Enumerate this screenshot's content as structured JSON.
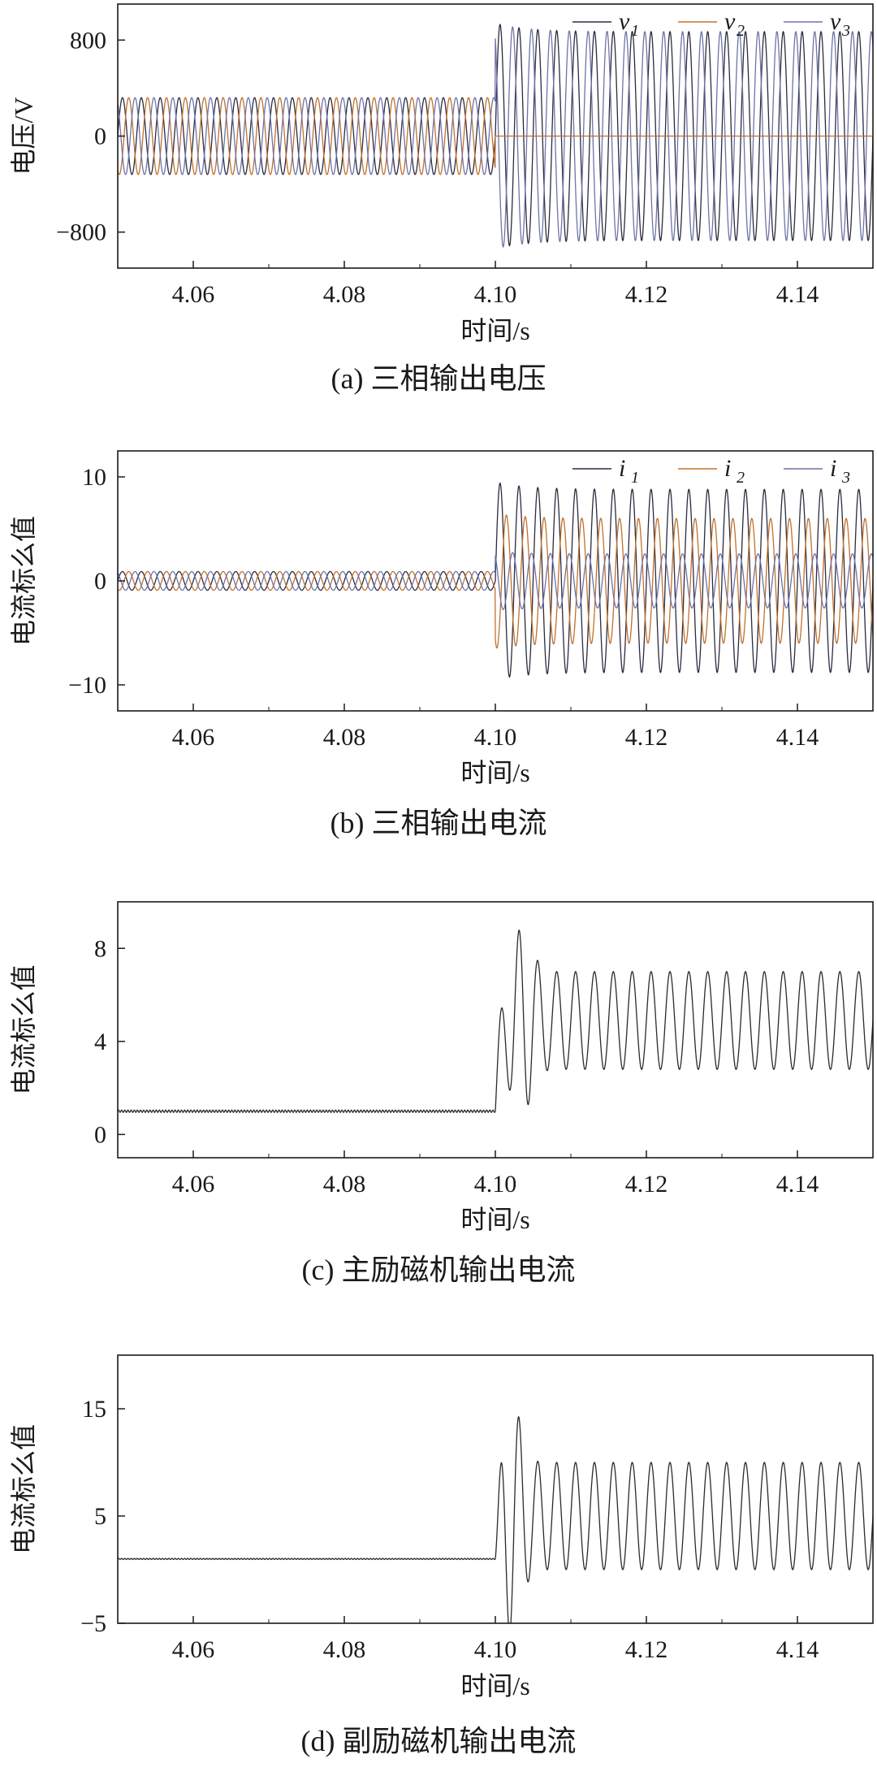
{
  "chart_data": [
    {
      "type": "line",
      "caption": "(a)  三相输出电压",
      "xlabel": "时间/s",
      "ylabel": "电压/V",
      "xlim": [
        4.05,
        4.15
      ],
      "ylim": [
        -1100,
        1100
      ],
      "x_ticks": [
        "4.06",
        "4.08",
        "4.10",
        "4.12",
        "4.14"
      ],
      "y_ticks": [
        "800",
        "0",
        "−800"
      ],
      "y_tick_values": [
        800,
        0,
        -800
      ],
      "legend_position": "top-right",
      "series": [
        {
          "name": "v",
          "subscript": "1",
          "color": "#2b2b40",
          "model": {
            "frequency_hz": 400,
            "phase_deg": 0,
            "amp_before": 320,
            "amp_after": 870,
            "switch_time": 4.1
          }
        },
        {
          "name": "v",
          "subscript": "2",
          "color": "#c2702c",
          "model": {
            "frequency_hz": 400,
            "phase_deg": -120,
            "amp_before": 320,
            "amp_after": 0,
            "switch_time": 4.1
          }
        },
        {
          "name": "v",
          "subscript": "3",
          "color": "#6e73a8",
          "model": {
            "frequency_hz": 400,
            "phase_deg": 120,
            "amp_before": 320,
            "amp_after": 870,
            "switch_time": 4.1
          }
        }
      ]
    },
    {
      "type": "line",
      "caption": "(b)  三相输出电流",
      "xlabel": "时间/s",
      "ylabel": "电流标么值",
      "xlim": [
        4.05,
        4.15
      ],
      "ylim": [
        -12.5,
        12.5
      ],
      "x_ticks": [
        "4.06",
        "4.08",
        "4.10",
        "4.12",
        "4.14"
      ],
      "y_ticks": [
        "10",
        "0",
        "−10"
      ],
      "y_tick_values": [
        10,
        0,
        -10
      ],
      "legend_position": "top-right",
      "series": [
        {
          "name": "i",
          "subscript": "1",
          "color": "#2b2b40",
          "model": {
            "frequency_hz": 400,
            "phase_deg": 0,
            "amp_before": 0.9,
            "amp_after": 8.8,
            "switch_time": 4.1
          }
        },
        {
          "name": "i",
          "subscript": "2",
          "color": "#c2702c",
          "model": {
            "frequency_hz": 400,
            "phase_deg": -120,
            "amp_before": 0.9,
            "amp_after": 6.0,
            "switch_time": 4.1
          }
        },
        {
          "name": "i",
          "subscript": "3",
          "color": "#6e73a8",
          "model": {
            "frequency_hz": 400,
            "phase_deg": 120,
            "amp_before": 0.9,
            "amp_after": 2.6,
            "switch_time": 4.1
          }
        }
      ]
    },
    {
      "type": "line",
      "caption": "(c)  主励磁机输出电流",
      "xlabel": "时间/s",
      "ylabel": "电流标么值",
      "xlim": [
        4.05,
        4.15
      ],
      "ylim": [
        -1,
        10
      ],
      "x_ticks": [
        "4.06",
        "4.08",
        "4.10",
        "4.12",
        "4.14"
      ],
      "y_ticks": [
        "8",
        "4",
        "0"
      ],
      "y_tick_values": [
        8,
        4,
        0
      ],
      "series": [
        {
          "name": "",
          "color": "#2b2b2b",
          "model": {
            "frequency_hz": 400,
            "level_before": 1.0,
            "ripple_before": 0.05,
            "mean_after": 4.9,
            "amp_after": 2.1,
            "switch_time": 4.1,
            "transient_peak": 8.9,
            "transient_time": 4.1035
          }
        }
      ]
    },
    {
      "type": "line",
      "caption": "(d)  副励磁机输出电流",
      "xlabel": "时间/s",
      "ylabel": "电流标么值",
      "xlim": [
        4.05,
        4.15
      ],
      "ylim": [
        -5,
        20
      ],
      "x_ticks": [
        "4.06",
        "4.08",
        "4.10",
        "4.12",
        "4.14"
      ],
      "y_ticks": [
        "15",
        "5",
        "−5"
      ],
      "y_tick_values": [
        15,
        5,
        -5
      ],
      "series": [
        {
          "name": "",
          "color": "#2b2b2b",
          "model": {
            "frequency_hz": 400,
            "level_before": 1.0,
            "ripple_before": 0.05,
            "mean_after": 5.0,
            "amp_after": 5.0,
            "switch_time": 4.1,
            "transient_peak": 16.3,
            "transient_time": 4.102
          }
        }
      ]
    }
  ]
}
